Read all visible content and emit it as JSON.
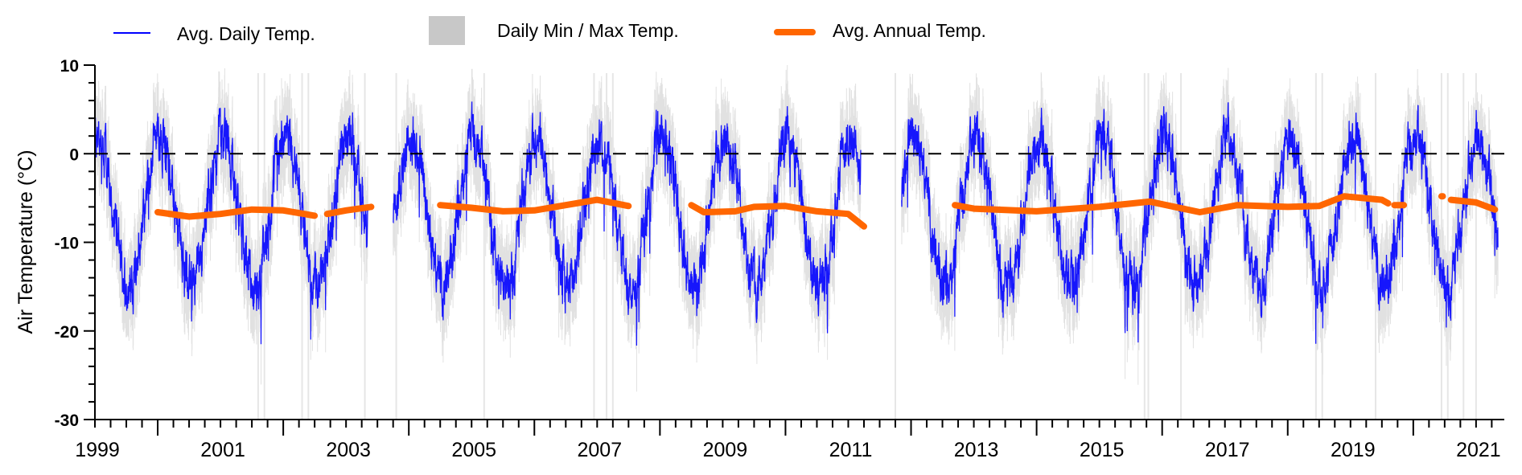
{
  "chart_data": {
    "type": "line",
    "title": "",
    "xlabel": "",
    "ylabel": "Air Temperature (°C)",
    "xlim": [
      1999.0,
      2021.45
    ],
    "ylim": [
      -30,
      10
    ],
    "x_tick_labels": [
      "1999",
      "2001",
      "2003",
      "2005",
      "2007",
      "2009",
      "2011",
      "2013",
      "2015",
      "2017",
      "2019",
      "2021"
    ],
    "y_tick_labels": [
      "10",
      "0",
      "-10",
      "-20",
      "-30"
    ],
    "y_ticks": [
      10,
      0,
      -10,
      -20,
      -30
    ],
    "reference_line": {
      "y": 0,
      "style": "dashed",
      "color": "#000000"
    },
    "legend": {
      "placement": "top",
      "entries": [
        {
          "label": "Avg. Daily Temp.",
          "color": "#0000ff",
          "symbol": "line"
        },
        {
          "label": "Daily Min / Max Temp.",
          "color": "#c8c8c8",
          "symbol": "box"
        },
        {
          "label": "Avg. Annual Temp.",
          "color": "#ff6600",
          "symbol": "thick-line"
        }
      ]
    },
    "daily_series": {
      "name": "Avg. Daily Temp.",
      "color": "#0000ff",
      "record_periods": [
        [
          1999.0,
          2003.35
        ],
        [
          2003.75,
          2011.2
        ],
        [
          2011.85,
          2021.35
        ]
      ],
      "annual_mean": -6.5,
      "seasonal_amplitude": 8.5,
      "summer_peak_month": "January",
      "typical_range": [
        -25,
        6.5
      ],
      "noise": 3.5
    },
    "minmax_band": {
      "name": "Daily Min / Max Temp.",
      "color": "#c8c8c8",
      "spread": 3.5,
      "absolute_max": 13.5
    },
    "annual_series": {
      "name": "Avg. Annual Temp.",
      "color": "#ff6600",
      "segments": [
        [
          [
            2000.0,
            -6.6
          ],
          [
            2000.5,
            -7.1
          ],
          [
            2001.0,
            -6.8
          ],
          [
            2001.5,
            -6.3
          ],
          [
            2002.0,
            -6.4
          ],
          [
            2002.5,
            -7.0
          ]
        ],
        [
          [
            2002.7,
            -6.8
          ],
          [
            2003.0,
            -6.4
          ],
          [
            2003.4,
            -6.0
          ]
        ],
        [
          [
            2004.5,
            -5.8
          ],
          [
            2005.0,
            -6.1
          ],
          [
            2005.5,
            -6.5
          ],
          [
            2006.0,
            -6.4
          ],
          [
            2006.5,
            -5.8
          ],
          [
            2007.0,
            -5.2
          ],
          [
            2007.5,
            -5.9
          ]
        ],
        [
          [
            2008.5,
            -5.8
          ],
          [
            2008.7,
            -6.6
          ],
          [
            2009.2,
            -6.5
          ],
          [
            2009.5,
            -6.0
          ],
          [
            2010.0,
            -5.9
          ],
          [
            2010.5,
            -6.5
          ],
          [
            2011.0,
            -6.8
          ],
          [
            2011.25,
            -8.2
          ]
        ],
        [
          [
            2012.7,
            -5.8
          ],
          [
            2013.0,
            -6.2
          ],
          [
            2014.0,
            -6.5
          ],
          [
            2015.0,
            -6.0
          ],
          [
            2015.8,
            -5.4
          ],
          [
            2016.2,
            -6.0
          ],
          [
            2016.6,
            -6.6
          ],
          [
            2017.2,
            -5.8
          ],
          [
            2018.0,
            -6.0
          ],
          [
            2018.5,
            -5.9
          ],
          [
            2018.9,
            -4.8
          ],
          [
            2019.5,
            -5.2
          ],
          [
            2019.6,
            -5.6
          ]
        ],
        [
          [
            2019.7,
            -5.8
          ],
          [
            2019.85,
            -5.8
          ]
        ],
        [
          [
            2020.45,
            -4.8
          ],
          [
            2020.47,
            -4.8
          ]
        ],
        [
          [
            2020.6,
            -5.2
          ],
          [
            2021.0,
            -5.5
          ],
          [
            2021.3,
            -6.3
          ]
        ]
      ]
    }
  }
}
